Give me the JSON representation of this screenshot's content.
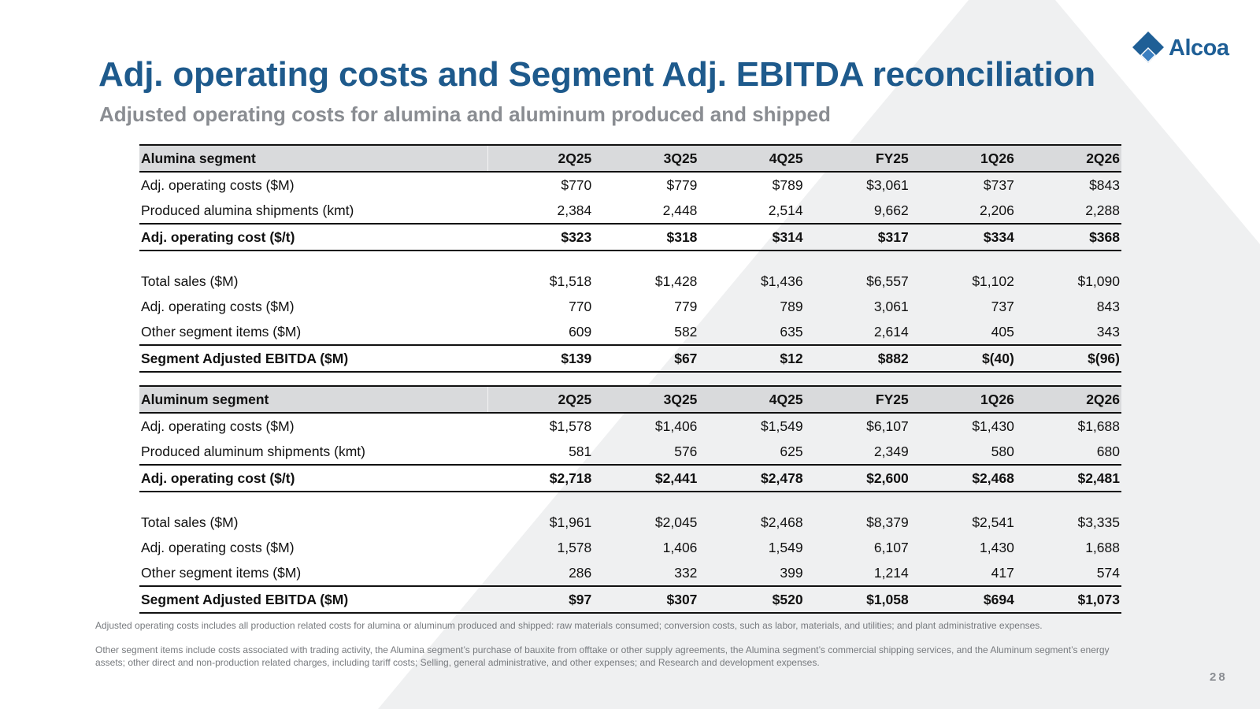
{
  "logo": {
    "text": "Alcoa",
    "colors": {
      "dark": "#1f5f96",
      "light": "#3c7fc0"
    }
  },
  "title": "Adj. operating costs and Segment Adj. EBITDA reconciliation",
  "subtitle": "Adjusted operating costs for alumina and aluminum produced and shipped",
  "accent_color": "#1e5a8c",
  "tables": [
    {
      "header": [
        "Alumina segment",
        "2Q25",
        "3Q25",
        "4Q25",
        "FY25",
        "1Q26",
        "2Q26"
      ],
      "block1": [
        [
          "Adj. operating costs ($M)",
          "$770",
          "$779",
          "$789",
          "$3,061",
          "$737",
          "$843"
        ],
        [
          "Produced alumina shipments (kmt)",
          "2,384",
          "2,448",
          "2,514",
          "9,662",
          "2,206",
          "2,288"
        ]
      ],
      "total1": [
        "Adj. operating cost ($/t)",
        "$323",
        "$318",
        "$314",
        "$317",
        "$334",
        "$368"
      ],
      "block2": [
        [
          "Total sales ($M)",
          "$1,518",
          "$1,428",
          "$1,436",
          "$6,557",
          "$1,102",
          "$1,090"
        ],
        [
          "Adj. operating costs ($M)",
          "770",
          "779",
          "789",
          "3,061",
          "737",
          "843"
        ],
        [
          "Other segment items ($M)",
          "609",
          "582",
          "635",
          "2,614",
          "405",
          "343"
        ]
      ],
      "total2": [
        "Segment Adjusted EBITDA ($M)",
        "$139",
        "$67",
        "$12",
        "$882",
        "$(40)",
        "$(96)"
      ]
    },
    {
      "header": [
        "Aluminum segment",
        "2Q25",
        "3Q25",
        "4Q25",
        "FY25",
        "1Q26",
        "2Q26"
      ],
      "block1": [
        [
          "Adj. operating costs ($M)",
          "$1,578",
          "$1,406",
          "$1,549",
          "$6,107",
          "$1,430",
          "$1,688"
        ],
        [
          "Produced aluminum shipments (kmt)",
          "581",
          "576",
          "625",
          "2,349",
          "580",
          "680"
        ]
      ],
      "total1": [
        "Adj. operating cost ($/t)",
        "$2,718",
        "$2,441",
        "$2,478",
        "$2,600",
        "$2,468",
        "$2,481"
      ],
      "block2": [
        [
          "Total sales ($M)",
          "$1,961",
          "$2,045",
          "$2,468",
          "$8,379",
          "$2,541",
          "$3,335"
        ],
        [
          "Adj. operating costs ($M)",
          "1,578",
          "1,406",
          "1,549",
          "6,107",
          "1,430",
          "1,688"
        ],
        [
          "Other segment items ($M)",
          "286",
          "332",
          "399",
          "1,214",
          "417",
          "574"
        ]
      ],
      "total2": [
        "Segment Adjusted EBITDA ($M)",
        "$97",
        "$307",
        "$520",
        "$1,058",
        "$694",
        "$1,073"
      ]
    }
  ],
  "footnotes": [
    "Adjusted operating costs includes all production related costs for alumina or aluminum produced and shipped: raw materials consumed; conversion costs, such as labor, materials, and utilities; and plant administrative expenses.",
    "Other segment items include costs associated with trading activity, the Alumina segment’s purchase of bauxite from offtake or other supply agreements, the Alumina segment’s commercial shipping services, and the Aluminum segment’s energy assets; other direct and non-production related charges, including tariff costs; Selling, general administrative, and other expenses; and Research and development expenses."
  ],
  "page_number": "28"
}
